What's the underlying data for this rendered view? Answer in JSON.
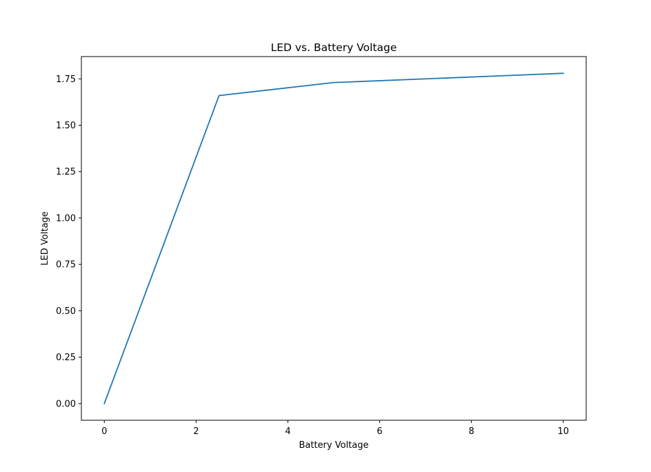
{
  "chart_data": {
    "type": "line",
    "title": "LED vs. Battery Voltage",
    "xlabel": "Battery Voltage",
    "ylabel": "LED Voltage",
    "xlim": [
      -0.5,
      10.5
    ],
    "ylim": [
      -0.09,
      1.87
    ],
    "xticks": [
      0,
      2,
      4,
      6,
      8,
      10
    ],
    "xtick_labels": [
      "0",
      "2",
      "4",
      "6",
      "8",
      "10"
    ],
    "yticks": [
      0,
      0.25,
      0.5,
      0.75,
      1.0,
      1.25,
      1.5,
      1.75
    ],
    "ytick_labels": [
      "0.00",
      "0.25",
      "0.50",
      "0.75",
      "1.00",
      "1.25",
      "1.50",
      "1.75"
    ],
    "grid": false,
    "series": [
      {
        "x": [
          0,
          2.5,
          5,
          10
        ],
        "values": [
          0,
          1.66,
          1.73,
          1.78
        ],
        "color": "#1f77b4"
      }
    ]
  }
}
